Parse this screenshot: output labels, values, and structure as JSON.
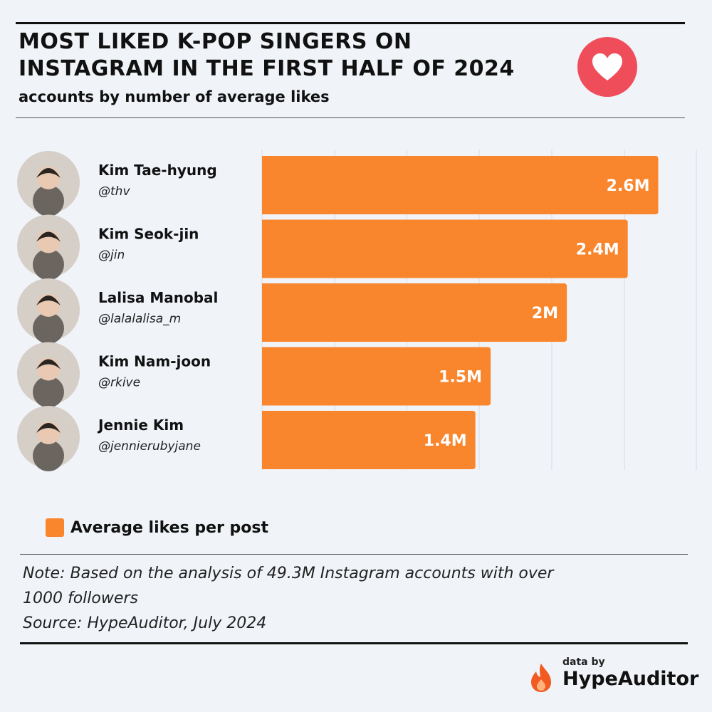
{
  "header": {
    "title": "MOST LIKED K-POP SINGERS ON INSTAGRAM IN THE FIRST HALF OF 2024",
    "subtitle": "accounts by number of average likes",
    "icon": "heart-icon",
    "icon_color": "#ef4d5a"
  },
  "chart_data": {
    "type": "bar",
    "orientation": "horizontal",
    "categories": [
      "Kim Tae-hyung",
      "Kim Seok-jin",
      "Lalisa Manobal",
      "Kim Nam-joon",
      "Jennie Kim"
    ],
    "handles": [
      "@thv",
      "@jin",
      "@lalalalisa_m",
      "@rkive",
      "@jennierubyjane"
    ],
    "series": [
      {
        "name": "Average likes per post",
        "values": [
          2.6,
          2.4,
          2.0,
          1.5,
          1.4
        ],
        "labels": [
          "2.6M",
          "2.4M",
          "2M",
          "1.5M",
          "1.4M"
        ],
        "color": "#f9852c"
      }
    ],
    "xlim": [
      0,
      2.85
    ],
    "grid": true,
    "legend": "bottom-left"
  },
  "note": {
    "line1": "Note: Based on the analysis of 49.3M Instagram accounts with over",
    "line2": "1000 followers",
    "source": "Source: HypeAuditor, July 2024"
  },
  "brand": {
    "by": "data by",
    "name": "HypeAuditor",
    "icon": "flame-icon",
    "color": "#f25a22"
  }
}
